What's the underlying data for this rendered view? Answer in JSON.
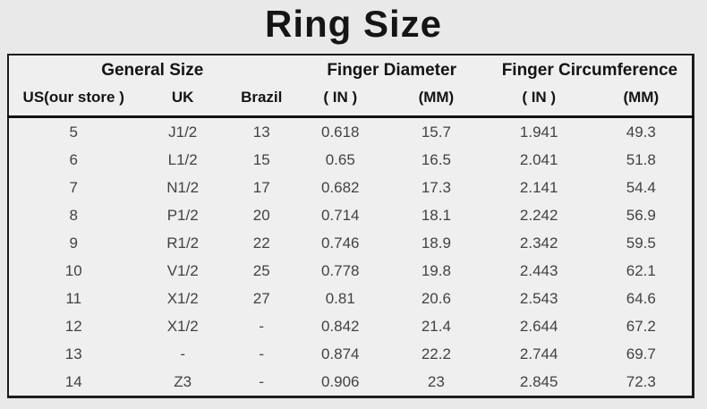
{
  "page": {
    "title": "Ring Size",
    "background_color": "#e9e9e9",
    "table_background_color": "#f0eff0",
    "border_color": "#1d1d1d",
    "text_color": "#424242",
    "header_text_color": "#141414"
  },
  "chart_data": {
    "type": "table",
    "title": "Ring Size",
    "group_headers": [
      {
        "label": "General Size",
        "colspan": 3
      },
      {
        "label": "Finger Diameter",
        "colspan": 2
      },
      {
        "label": "Finger Circumference",
        "colspan": 2
      }
    ],
    "columns": [
      "US(our store )",
      "UK",
      "Brazil",
      "( IN )",
      "(MM)",
      "( IN )",
      "(MM)"
    ],
    "column_widths_percent": [
      19,
      13,
      10,
      13,
      15,
      15,
      15
    ],
    "rows": [
      [
        "5",
        "J1/2",
        "13",
        "0.618",
        "15.7",
        "1.941",
        "49.3"
      ],
      [
        "6",
        "L1/2",
        "15",
        "0.65",
        "16.5",
        "2.041",
        "51.8"
      ],
      [
        "7",
        "N1/2",
        "17",
        "0.682",
        "17.3",
        "2.141",
        "54.4"
      ],
      [
        "8",
        "P1/2",
        "20",
        "0.714",
        "18.1",
        "2.242",
        "56.9"
      ],
      [
        "9",
        "R1/2",
        "22",
        "0.746",
        "18.9",
        "2.342",
        "59.5"
      ],
      [
        "10",
        "V1/2",
        "25",
        "0.778",
        "19.8",
        "2.443",
        "62.1"
      ],
      [
        "11",
        "X1/2",
        "27",
        "0.81",
        "20.6",
        "2.543",
        "64.6"
      ],
      [
        "12",
        "X1/2",
        "-",
        "0.842",
        "21.4",
        "2.644",
        "67.2"
      ],
      [
        "13",
        "-",
        "-",
        "0.874",
        "22.2",
        "2.744",
        "69.7"
      ],
      [
        "14",
        "Z3",
        "-",
        "0.906",
        "23",
        "2.845",
        "72.3"
      ]
    ]
  }
}
